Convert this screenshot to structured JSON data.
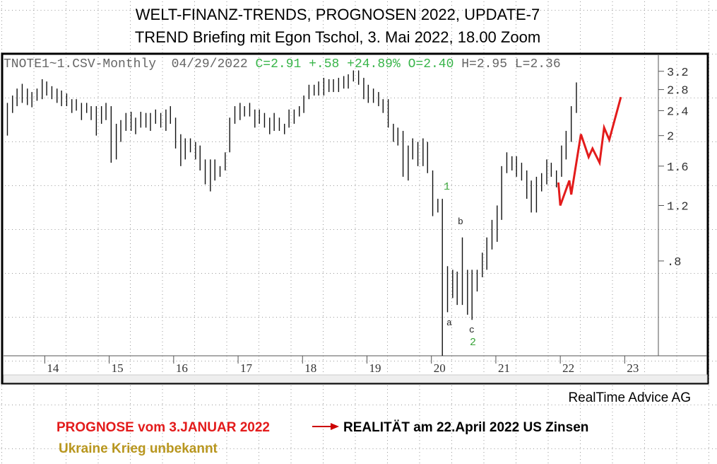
{
  "header": {
    "title": "WELT-FINANZ-TRENDS, PROGNOSEN 2022, UPDATE-7",
    "subtitle": "TREND Briefing mit Egon Tschol, 3. Mai 2022, 18.00 Zoom"
  },
  "chart_data": {
    "type": "ohlc",
    "log_scale": true,
    "series": [
      {
        "name": "TNOTE1~1.CSV-Monthly",
        "color": "#111111",
        "x": [
          2013.42,
          2013.5,
          2013.57,
          2013.65,
          2013.73,
          2013.8,
          2013.88,
          2013.96,
          2014.03,
          2014.11,
          2014.19,
          2014.26,
          2014.34,
          2014.42,
          2014.49,
          2014.57,
          2014.65,
          2014.72,
          2014.8,
          2014.88,
          2014.95,
          2015.03,
          2015.11,
          2015.18,
          2015.26,
          2015.34,
          2015.41,
          2015.49,
          2015.57,
          2015.64,
          2015.72,
          2015.8,
          2015.88,
          2015.95,
          2016.03,
          2016.11,
          2016.18,
          2016.26,
          2016.34,
          2016.41,
          2016.49,
          2016.57,
          2016.64,
          2016.72,
          2016.8,
          2016.87,
          2016.95,
          2017.03,
          2017.1,
          2017.18,
          2017.26,
          2017.33,
          2017.41,
          2017.49,
          2017.56,
          2017.64,
          2017.72,
          2017.79,
          2017.87,
          2017.95,
          2018.02,
          2018.1,
          2018.18,
          2018.25,
          2018.33,
          2018.41,
          2018.48,
          2018.56,
          2018.64,
          2018.71,
          2018.79,
          2018.87,
          2018.95,
          2019.02,
          2019.1,
          2019.18,
          2019.25,
          2019.33,
          2019.41,
          2019.48,
          2019.56,
          2019.64,
          2019.71,
          2019.79,
          2019.87,
          2019.94,
          2020.02,
          2020.1,
          2020.17,
          2020.25,
          2020.33,
          2020.4,
          2020.48,
          2020.56,
          2020.63,
          2020.71,
          2020.79,
          2020.86,
          2020.94,
          2021.02,
          2021.09,
          2021.17,
          2021.25,
          2021.32,
          2021.4,
          2021.48,
          2021.55,
          2021.63,
          2021.71,
          2021.79,
          2021.86,
          2021.94,
          2022.02,
          2022.09,
          2022.17,
          2022.25
        ],
        "high": [
          2.54,
          2.68,
          2.82,
          2.92,
          2.82,
          2.75,
          2.82,
          3.02,
          2.97,
          2.87,
          2.82,
          2.78,
          2.72,
          2.61,
          2.61,
          2.54,
          2.54,
          2.48,
          2.48,
          2.48,
          2.54,
          2.48,
          2.18,
          2.24,
          2.36,
          2.38,
          2.28,
          2.38,
          2.36,
          2.36,
          2.42,
          2.36,
          2.42,
          2.48,
          2.28,
          2.02,
          1.96,
          1.96,
          1.91,
          1.86,
          1.68,
          1.68,
          1.68,
          1.6,
          1.77,
          2.28,
          2.48,
          2.54,
          2.48,
          2.54,
          2.42,
          2.42,
          2.36,
          2.28,
          2.36,
          2.28,
          2.18,
          2.42,
          2.42,
          2.48,
          2.68,
          2.9,
          2.9,
          2.97,
          3.05,
          3.02,
          3.02,
          3.05,
          3.09,
          3.13,
          3.22,
          3.22,
          3.05,
          2.9,
          2.82,
          2.75,
          2.61,
          2.61,
          2.18,
          2.12,
          2.07,
          1.86,
          1.96,
          1.91,
          1.96,
          1.91,
          1.55,
          1.26,
          1.26,
          0.77,
          0.75,
          0.74,
          0.95,
          0.75,
          0.75,
          0.75,
          0.85,
          0.95,
          1.08,
          1.2,
          1.6,
          1.77,
          1.72,
          1.72,
          1.64,
          1.55,
          1.44,
          1.48,
          1.52,
          1.68,
          1.64,
          1.55,
          1.86,
          2.07,
          2.48,
          2.95
        ],
        "low": [
          2.0,
          2.36,
          2.48,
          2.54,
          2.5,
          2.46,
          2.58,
          2.61,
          2.68,
          2.61,
          2.54,
          2.48,
          2.48,
          2.36,
          2.4,
          2.24,
          2.36,
          2.24,
          2.0,
          2.18,
          2.24,
          1.64,
          1.68,
          1.91,
          2.07,
          2.07,
          2.02,
          2.12,
          2.12,
          2.07,
          2.18,
          2.12,
          2.07,
          2.18,
          1.82,
          1.6,
          1.68,
          1.77,
          1.68,
          1.55,
          1.4,
          1.33,
          1.44,
          1.48,
          1.55,
          1.77,
          2.18,
          2.24,
          2.3,
          2.3,
          2.12,
          2.18,
          2.12,
          2.02,
          2.07,
          2.07,
          2.02,
          2.12,
          2.18,
          2.3,
          2.36,
          2.61,
          2.68,
          2.68,
          2.68,
          2.75,
          2.75,
          2.75,
          2.82,
          2.82,
          2.97,
          2.9,
          2.61,
          2.54,
          2.54,
          2.48,
          2.36,
          2.12,
          1.91,
          1.86,
          1.48,
          1.44,
          1.68,
          1.6,
          1.6,
          1.52,
          1.11,
          1.14,
          0.4,
          0.55,
          0.61,
          0.58,
          0.58,
          0.54,
          0.52,
          0.64,
          0.71,
          0.75,
          0.87,
          0.92,
          1.08,
          1.52,
          1.55,
          1.48,
          1.44,
          1.26,
          1.14,
          1.14,
          1.33,
          1.4,
          1.48,
          1.37,
          1.48,
          1.68,
          1.91,
          2.36
        ]
      }
    ],
    "info": {
      "date": "04/29/2022",
      "close": "C=2.91",
      "change": "+.58",
      "change_pct": "+24.89%",
      "open": "O=2.40",
      "high": "H=2.95",
      "low": "L=2.36"
    },
    "forecast": {
      "type": "line",
      "color": "#e31b1b",
      "x": [
        2021.97,
        2022.0,
        2022.14,
        2022.17,
        2022.32,
        2022.44,
        2022.5,
        2022.61,
        2022.68,
        2022.76,
        2022.94
      ],
      "values": [
        1.42,
        1.2,
        1.44,
        1.3,
        2.02,
        1.71,
        1.82,
        1.64,
        2.12,
        1.94,
        2.65
      ]
    },
    "annotations": [
      "1",
      "b",
      "a",
      "c",
      "2"
    ],
    "xlim": [
      2013.36,
      2023.5
    ],
    "xticks": [
      {
        "value": 2014,
        "label": "14"
      },
      {
        "value": 2015,
        "label": "15"
      },
      {
        "value": 2016,
        "label": "16"
      },
      {
        "value": 2017,
        "label": "17"
      },
      {
        "value": 2018,
        "label": "18"
      },
      {
        "value": 2019,
        "label": "19"
      },
      {
        "value": 2020,
        "label": "20"
      },
      {
        "value": 2021,
        "label": "21"
      },
      {
        "value": 2022,
        "label": "22"
      },
      {
        "value": 2023,
        "label": "23"
      }
    ],
    "ylim": [
      0.4,
      3.6
    ],
    "yticks": [
      {
        "value": 0.8,
        "label": ".8"
      },
      1.2,
      1.6,
      2,
      2.4,
      2.8,
      3.2
    ]
  },
  "footer": {
    "source": "RealTime Advice AG",
    "forecast_label": "PROGNOSE vom 3.JANUAR 2022",
    "reality_label": "REALITÄT am 22.April 2022 US Zinsen",
    "note": "Ukraine Krieg unbekannt"
  }
}
